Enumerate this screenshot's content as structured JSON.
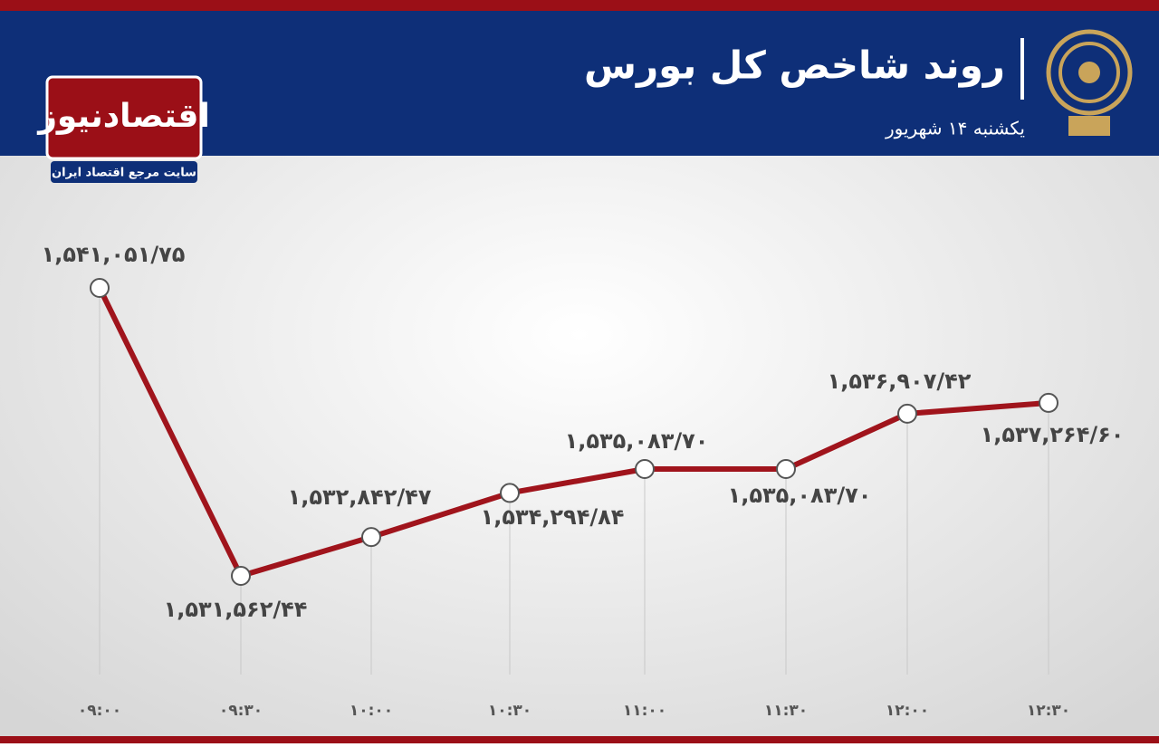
{
  "header": {
    "title": "روند شاخص کل بورس",
    "subtitle": "یکشنبه ۱۴ شهریور"
  },
  "logo": {
    "name": "اقتصادنیوز",
    "tagline": "سایت مرجع اقتصاد ایران"
  },
  "chart_data": {
    "type": "line",
    "categories": [
      "۰۹:۰۰",
      "۰۹:۳۰",
      "۱۰:۰۰",
      "۱۰:۳۰",
      "۱۱:۰۰",
      "۱۱:۳۰",
      "۱۲:۰۰",
      "۱۲:۳۰"
    ],
    "series": [
      {
        "color": "#a0141c",
        "values": [
          1541051.75,
          1531562.44,
          1532842.47,
          1534294.84,
          1535083.7,
          1535083.7,
          1536907.42,
          1537264.6
        ],
        "value_labels": [
          "۱,۵۴۱,۰۵۱/۷۵",
          "۱,۵۳۱,۵۶۲/۴۴",
          "۱,۵۳۲,۸۴۲/۴۷",
          "۱,۵۳۴,۲۹۴/۸۴",
          "۱,۵۳۵,۰۸۳/۷۰",
          "۱,۵۳۵,۰۸۳/۷۰",
          "۱,۵۳۶,۹۰۷/۴۲",
          "۱,۵۳۷,۲۶۴/۶۰"
        ]
      }
    ]
  }
}
